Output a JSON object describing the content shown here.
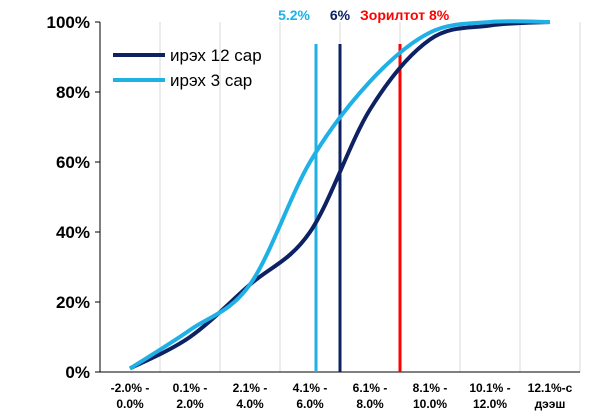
{
  "chart_data": {
    "type": "line",
    "categories": [
      "-2.0% -\n0.0%",
      "0.1% -\n2.0%",
      "2.1% -\n4.0%",
      "4.1% -\n6.0%",
      "6.1% -\n8.0%",
      "8.1% -\n10.0%",
      "10.1% -\n12.0%",
      "12.1%-с\nдээш"
    ],
    "series": [
      {
        "name": "ирэх 12 сар",
        "color": "#0d2163",
        "values": [
          1,
          10,
          25,
          40,
          75,
          95,
          99,
          100
        ]
      },
      {
        "name": "ирэх 3 сар",
        "color": "#1fb0e6",
        "values": [
          1,
          12,
          25,
          60,
          83,
          97,
          100,
          100
        ]
      }
    ],
    "ylim": [
      0,
      100
    ],
    "yticks": [
      {
        "value": 0,
        "label": "0%"
      },
      {
        "value": 20,
        "label": "20%"
      },
      {
        "value": 40,
        "label": "40%"
      },
      {
        "value": 60,
        "label": "60%"
      },
      {
        "value": 80,
        "label": "80%"
      },
      {
        "value": 100,
        "label": "100%"
      }
    ],
    "xlim": [
      -2,
      14
    ],
    "reference_lines": [
      {
        "label": "5.2%",
        "x": 5.2,
        "color": "#1fb0e6"
      },
      {
        "label": "6%",
        "x": 6,
        "color": "#0d2163"
      },
      {
        "label": "Зорилтот 8%",
        "x": 8,
        "color": "#ff0000"
      }
    ],
    "grid": true,
    "legend": "top-left"
  }
}
